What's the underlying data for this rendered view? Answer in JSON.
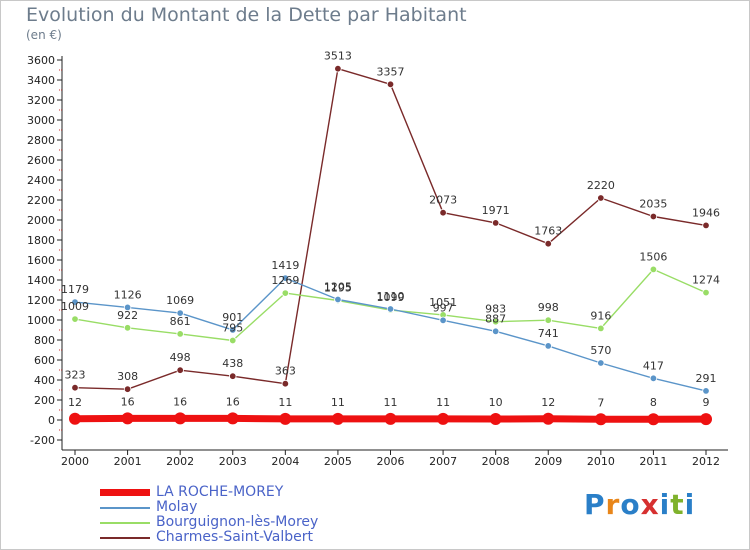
{
  "title": "Evolution du Montant de la Dette par Habitant",
  "subtitle": "(en €)",
  "brand": {
    "letters": [
      "P",
      "r",
      "o",
      "x",
      "i",
      "t",
      "i"
    ],
    "colors": [
      "#2a7fc8",
      "#e8861a",
      "#2a7fc8",
      "#d63030",
      "#2a7fc8",
      "#7fb22c",
      "#2a7fc8"
    ]
  },
  "chart_data": {
    "type": "line",
    "title": "Evolution du Montant de la Dette par Habitant",
    "ylabel": "(en €)",
    "x": [
      "2000",
      "2001",
      "2002",
      "2003",
      "2004",
      "2005",
      "2006",
      "2007",
      "2008",
      "2009",
      "2010",
      "2011",
      "2012"
    ],
    "ylim": [
      -200,
      3600
    ],
    "yticks": [
      -200,
      0,
      200,
      400,
      600,
      800,
      1000,
      1200,
      1400,
      1600,
      1800,
      2000,
      2200,
      2400,
      2600,
      2800,
      3000,
      3200,
      3400,
      3600
    ],
    "grid": false,
    "legend_position": "bottom-left",
    "series": [
      {
        "name": "LA ROCHE-MOREY",
        "color": "#ee1111",
        "values": [
          12,
          16,
          16,
          16,
          11,
          11,
          11,
          11,
          10,
          12,
          7,
          8,
          9
        ]
      },
      {
        "name": "Molay",
        "color": "#5b95c9",
        "values": [
          1179,
          1126,
          1069,
          901,
          1419,
          1205,
          1110,
          997,
          887,
          741,
          570,
          417,
          291
        ]
      },
      {
        "name": "Bourguignon-lès-Morey",
        "color": "#99dd66",
        "values": [
          1009,
          922,
          861,
          795,
          1269,
          1195,
          1099,
          1051,
          983,
          998,
          916,
          1506,
          1274
        ]
      },
      {
        "name": "Charmes-Saint-Valbert",
        "color": "#7a2a2a",
        "values": [
          323,
          308,
          498,
          438,
          363,
          3513,
          3357,
          2073,
          1971,
          1763,
          2220,
          2035,
          1946
        ]
      }
    ]
  }
}
